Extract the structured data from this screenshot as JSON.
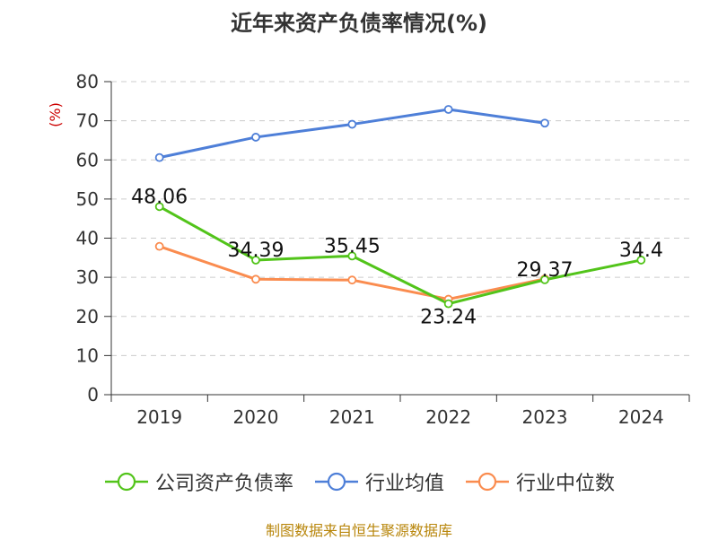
{
  "chart_data": {
    "type": "line",
    "title": "近年来资产负债率情况(%)",
    "ylabel": "(%)",
    "xlabel": "",
    "categories": [
      "2019",
      "2020",
      "2021",
      "2022",
      "2023",
      "2024"
    ],
    "ylim": [
      0,
      80
    ],
    "yticks": [
      0,
      10,
      20,
      30,
      40,
      50,
      60,
      70,
      80
    ],
    "grid": true,
    "legend_position": "bottom",
    "series": [
      {
        "name": "公司资产负债率",
        "color": "#52c41a",
        "values": [
          48.06,
          34.39,
          35.45,
          23.24,
          29.37,
          34.4
        ],
        "labels": [
          "48.06",
          "34.39",
          "35.45",
          "23.24",
          "29.37",
          "34.4"
        ],
        "show_labels": true
      },
      {
        "name": "行业均值",
        "color": "#4e7fd8",
        "values": [
          60.6,
          65.8,
          69.1,
          72.9,
          69.4,
          null
        ],
        "show_labels": false
      },
      {
        "name": "行业中位数",
        "color": "#fa8c4f",
        "values": [
          37.9,
          29.5,
          29.3,
          24.4,
          29.6,
          null
        ],
        "show_labels": false
      }
    ]
  },
  "source_text": "制图数据来自恒生聚源数据库"
}
